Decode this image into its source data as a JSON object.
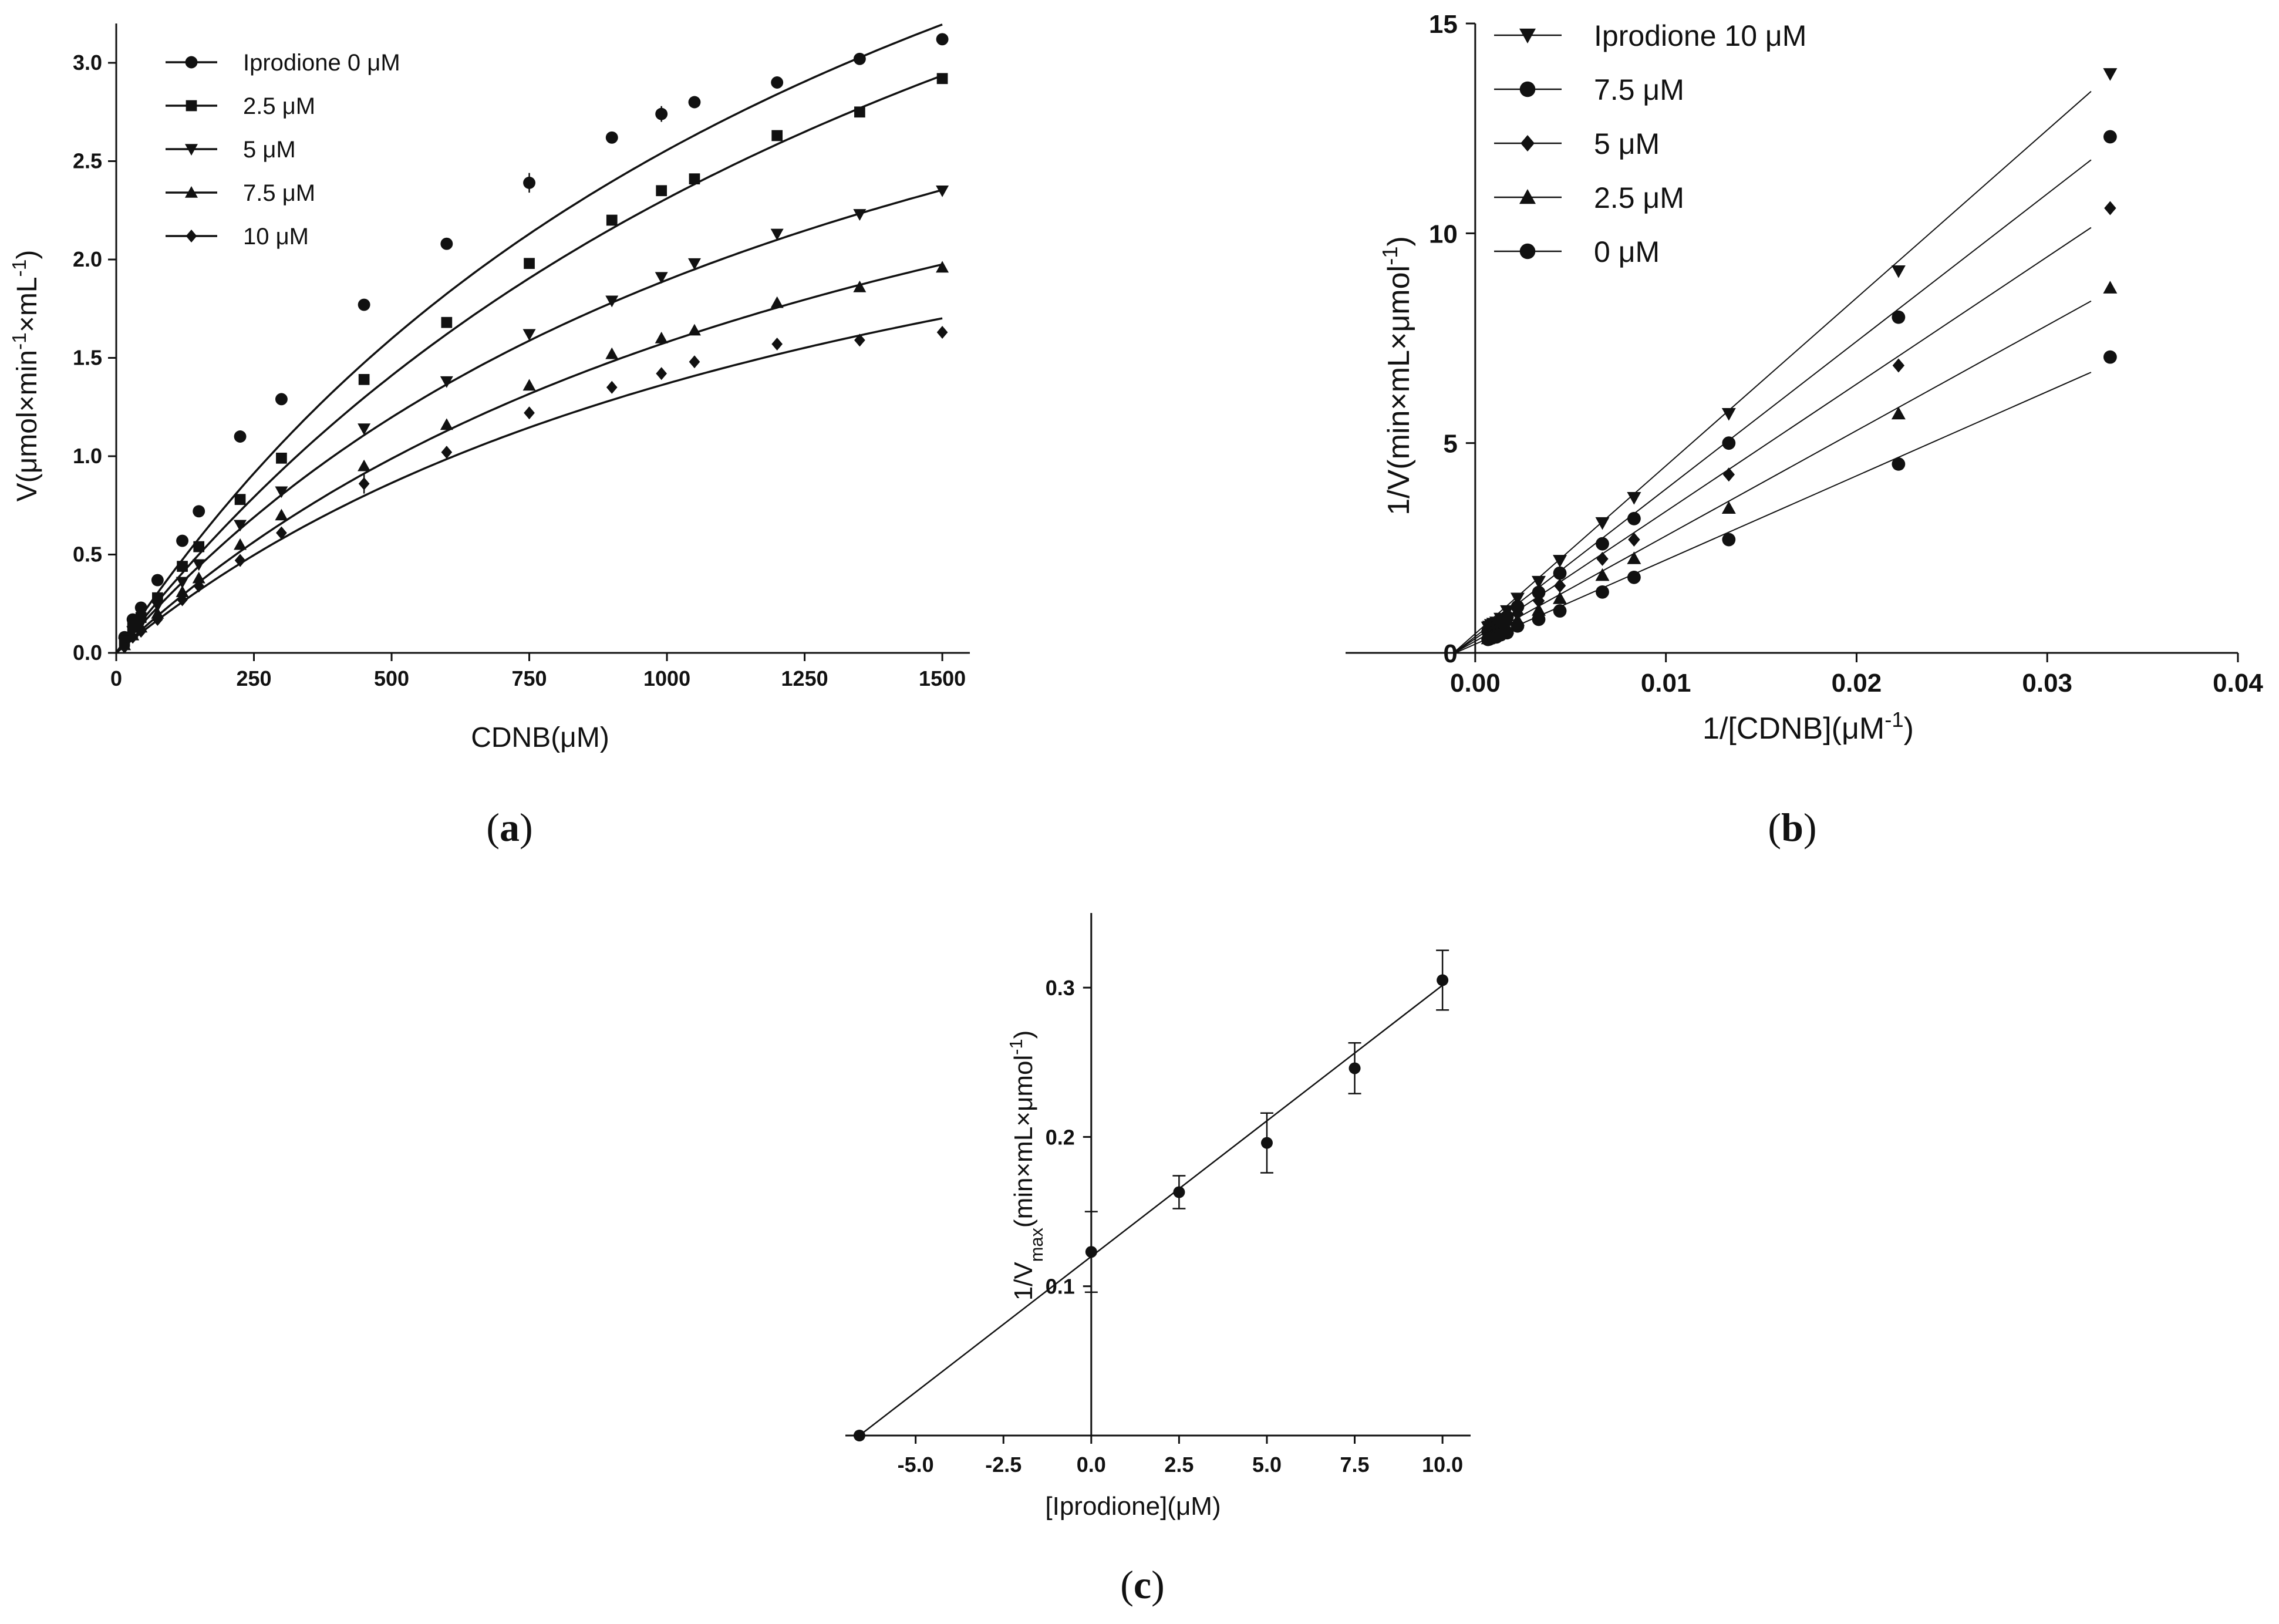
{
  "chart_data": [
    {
      "id": "a",
      "type": "scatter",
      "panel_label": "a",
      "xlabel": "CDNB(μM)",
      "ylabel_parts": [
        "V(μmol×min",
        "-1",
        "×mL",
        "-1",
        ")"
      ],
      "xlim": [
        0,
        1550
      ],
      "ylim": [
        0,
        3.2
      ],
      "xticks": [
        0,
        250,
        500,
        750,
        1000,
        1250,
        1500
      ],
      "yticks": [
        0.0,
        0.5,
        1.0,
        1.5,
        2.0,
        2.5,
        3.0
      ],
      "x": [
        15,
        30,
        45,
        75,
        120,
        150,
        225,
        300,
        450,
        600,
        750,
        900,
        990,
        1050,
        1200,
        1350,
        1500
      ],
      "series": [
        {
          "name": "Iprodione 0 μM",
          "marker": "circle",
          "vmax": 6.39,
          "km": 1500,
          "values": [
            0.08,
            0.17,
            0.23,
            0.37,
            0.57,
            0.72,
            1.1,
            1.29,
            1.77,
            2.08,
            2.39,
            2.62,
            2.74,
            2.8,
            2.9,
            3.02,
            3.12
          ]
        },
        {
          "name": "2.5 μM",
          "marker": "square",
          "vmax": 6.4,
          "km": 1770,
          "values": [
            0.06,
            0.13,
            0.18,
            0.28,
            0.44,
            0.54,
            0.78,
            0.99,
            1.39,
            1.68,
            1.98,
            2.2,
            2.35,
            2.41,
            2.63,
            2.75,
            2.92
          ]
        },
        {
          "name": "5 μM",
          "marker": "triangle-down",
          "vmax": 4.55,
          "km": 1400,
          "values": [
            0.05,
            0.11,
            0.15,
            0.24,
            0.36,
            0.45,
            0.65,
            0.82,
            1.14,
            1.38,
            1.62,
            1.79,
            1.91,
            1.98,
            2.13,
            2.23,
            2.35
          ]
        },
        {
          "name": "7.5 μM",
          "marker": "triangle-up",
          "vmax": 3.95,
          "km": 1500,
          "values": [
            0.04,
            0.09,
            0.13,
            0.2,
            0.31,
            0.38,
            0.55,
            0.7,
            0.95,
            1.16,
            1.36,
            1.52,
            1.6,
            1.64,
            1.78,
            1.86,
            1.96
          ]
        },
        {
          "name": "10 μM",
          "marker": "diamond",
          "vmax": 3.3,
          "km": 1410,
          "values": [
            0.03,
            0.08,
            0.11,
            0.17,
            0.27,
            0.34,
            0.47,
            0.61,
            0.86,
            1.02,
            1.22,
            1.35,
            1.42,
            1.48,
            1.57,
            1.59,
            1.63
          ]
        }
      ]
    },
    {
      "id": "b",
      "type": "line",
      "panel_label": "b",
      "xlabel_parts": [
        "1/[CDNB](μM",
        "-1",
        ")"
      ],
      "ylabel_parts": [
        "1/V(min×mL×μmol",
        "-1",
        ")"
      ],
      "xlim": [
        -0.0068,
        0.04
      ],
      "ylim": [
        0,
        15
      ],
      "xticks": [
        0.0,
        0.01,
        0.02,
        0.03,
        0.04
      ],
      "xtick_labels": [
        "0.00",
        "0.01",
        "0.02",
        "0.03",
        "0.04"
      ],
      "yticks": [
        0,
        5,
        10,
        15
      ],
      "x": [
        0.00067,
        0.00074,
        0.00083,
        0.00095,
        0.00111,
        0.00133,
        0.00167,
        0.00222,
        0.00333,
        0.00444,
        0.00667,
        0.00833,
        0.0133,
        0.0222,
        0.0333
      ],
      "series": [
        {
          "name": "Iprodione 10 μM",
          "marker": "triangle-down",
          "slope": 405,
          "intercept": 0.3,
          "values": [
            0.61,
            0.63,
            0.67,
            0.7,
            0.73,
            0.82,
            1.0,
            1.3,
            1.7,
            2.2,
            3.1,
            3.7,
            5.7,
            9.1,
            13.8
          ]
        },
        {
          "name": "7.5  μM",
          "marker": "circle",
          "slope": 356,
          "intercept": 0.25,
          "values": [
            0.51,
            0.54,
            0.56,
            0.6,
            0.62,
            0.73,
            0.86,
            1.1,
            1.44,
            1.9,
            2.6,
            3.2,
            5.0,
            8.0,
            12.3
          ]
        },
        {
          "name": "5 μM",
          "marker": "diamond",
          "slope": 307,
          "intercept": 0.22,
          "values": [
            0.43,
            0.45,
            0.47,
            0.51,
            0.53,
            0.63,
            0.72,
            0.94,
            1.24,
            1.6,
            2.24,
            2.7,
            4.25,
            6.85,
            10.6
          ]
        },
        {
          "name": "2.5 μM",
          "marker": "triangle-up",
          "slope": 254,
          "intercept": 0.18,
          "values": [
            0.34,
            0.37,
            0.39,
            0.42,
            0.44,
            0.53,
            0.6,
            0.78,
            1.02,
            1.3,
            1.85,
            2.25,
            3.45,
            5.7,
            8.7
          ]
        },
        {
          "name": "0 μM",
          "marker": "circle",
          "slope": 203,
          "intercept": 0.13,
          "values": [
            0.32,
            0.33,
            0.35,
            0.37,
            0.38,
            0.43,
            0.48,
            0.64,
            0.8,
            1.0,
            1.45,
            1.8,
            2.7,
            4.5,
            7.05
          ]
        }
      ]
    },
    {
      "id": "c",
      "type": "scatter",
      "panel_label": "c",
      "xlabel": "[Iprodione](μM)",
      "ylabel_parts": [
        "1/V",
        "max",
        "(min×mL×μmol",
        "-1",
        ")"
      ],
      "xlim": [
        -7.0,
        10.8
      ],
      "ylim": [
        0.0,
        0.35
      ],
      "xticks": [
        -5.0,
        -2.5,
        0.0,
        2.5,
        5.0,
        7.5,
        10.0
      ],
      "xtick_labels": [
        "-5.0",
        "-2.5",
        "0.0",
        "2.5",
        "5.0",
        "7.5",
        "10.0"
      ],
      "yticks": [
        0.1,
        0.2,
        0.3
      ],
      "ytick_labels": [
        "0.1",
        "0.2",
        "0.3"
      ],
      "fit": {
        "slope": 0.0182,
        "intercept": 0.1196
      },
      "points": [
        {
          "x": -6.6,
          "y": 0.0,
          "err": 0.0
        },
        {
          "x": 0.0,
          "y": 0.123,
          "err": 0.027
        },
        {
          "x": 2.5,
          "y": 0.163,
          "err": 0.011
        },
        {
          "x": 5.0,
          "y": 0.196,
          "err": 0.02
        },
        {
          "x": 7.5,
          "y": 0.246,
          "err": 0.017
        },
        {
          "x": 10.0,
          "y": 0.305,
          "err": 0.02
        }
      ]
    }
  ]
}
